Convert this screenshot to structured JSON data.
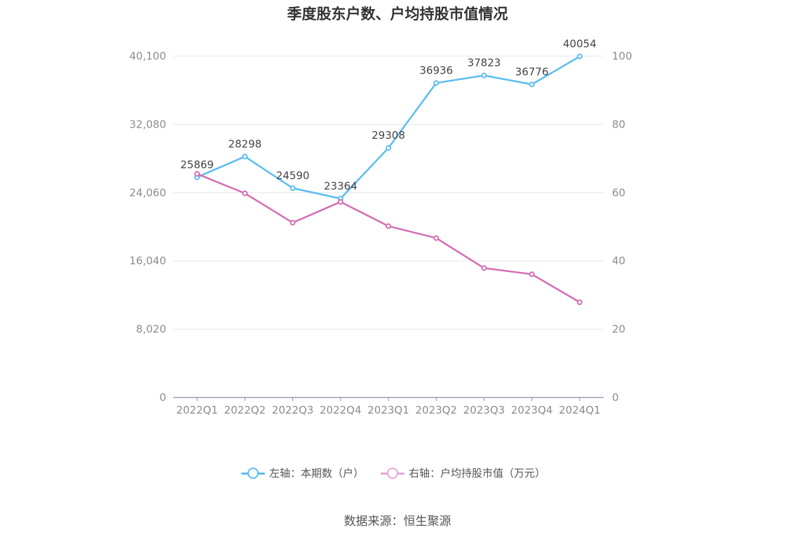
{
  "chart_data": {
    "type": "line",
    "title": "季度股东户数、户均持股市值情况",
    "categories": [
      "2022Q1",
      "2022Q2",
      "2022Q3",
      "2022Q4",
      "2023Q1",
      "2023Q2",
      "2023Q3",
      "2023Q4",
      "2024Q1"
    ],
    "series": [
      {
        "name": "左轴：本期数（户）",
        "axis": "left",
        "color": "#5bbdf0",
        "values": [
          25869,
          28298,
          24590,
          23364,
          29308,
          36936,
          37823,
          36776,
          40054
        ],
        "data_labels": [
          "25869",
          "28298",
          "24590",
          "23364",
          "29308",
          "36936",
          "37823",
          "36776",
          "40054"
        ]
      },
      {
        "name": "右轴：户均持股市值（万元）",
        "axis": "right",
        "color": "#d46eb4",
        "values": [
          65.5,
          59.8,
          51.2,
          57.3,
          50.2,
          46.7,
          37.9,
          36.1,
          27.9
        ]
      }
    ],
    "left_axis": {
      "ylim": [
        0,
        40100
      ],
      "ticks": [
        0,
        8020,
        16040,
        24060,
        32080,
        40100
      ],
      "tick_labels": [
        "0",
        "8,020",
        "16,040",
        "24,060",
        "32,080",
        "40,100"
      ]
    },
    "right_axis": {
      "ylim": [
        0,
        100
      ],
      "ticks": [
        0,
        20,
        40,
        60,
        80,
        100
      ],
      "tick_labels": [
        "0",
        "20",
        "40",
        "60",
        "80",
        "100"
      ]
    },
    "grid": true,
    "legend_position": "bottom"
  },
  "legend": {
    "items": [
      {
        "label": "左轴：本期数（户）",
        "color": "#5bbdf0"
      },
      {
        "label": "右轴：户均持股市值（万元）",
        "color": "#e8a8d4"
      }
    ]
  },
  "source": "数据来源：恒生聚源"
}
